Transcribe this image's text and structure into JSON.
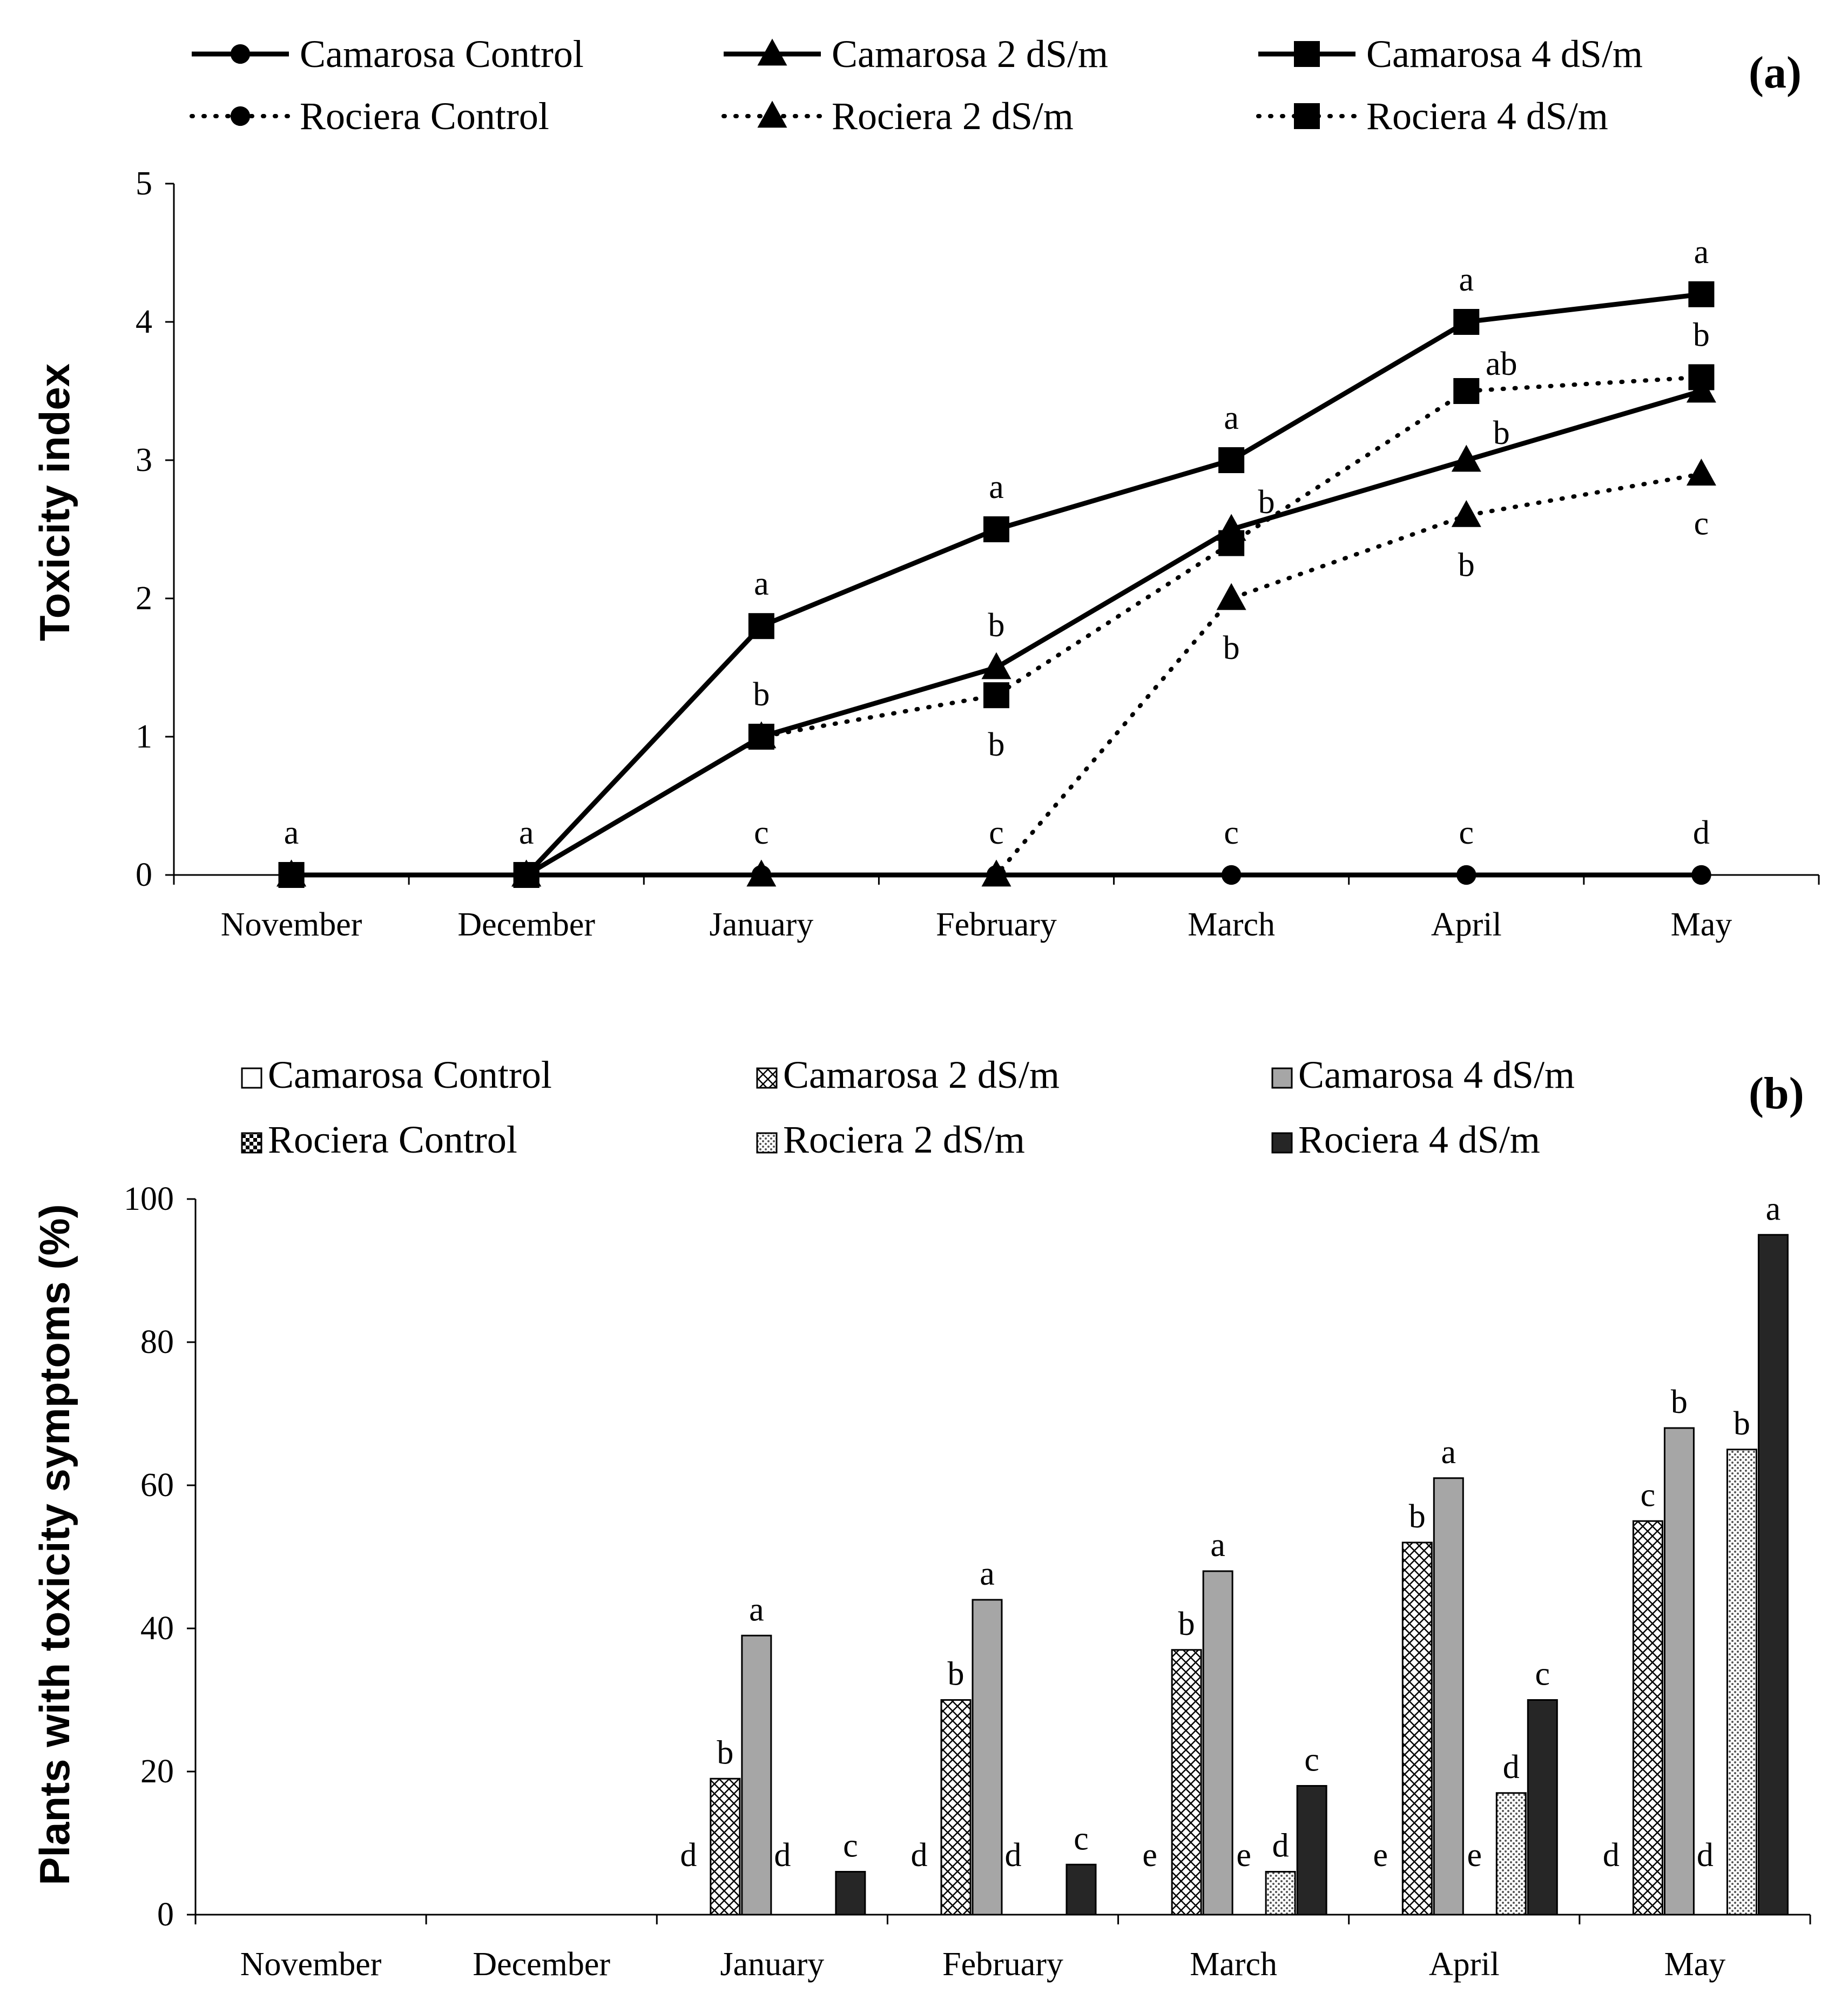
{
  "chart_data": [
    {
      "type": "line",
      "panel_label": "(a)",
      "ylabel": "Toxicity index",
      "ylim": [
        0,
        5
      ],
      "yticks": [
        0,
        1,
        2,
        3,
        4,
        5
      ],
      "categories": [
        "November",
        "December",
        "January",
        "February",
        "March",
        "April",
        "May"
      ],
      "legend": [
        "Camarosa Control",
        "Camarosa 2 dS/m",
        "Camarosa 4 dS/m",
        "Rociera Control",
        "Rociera 2 dS/m",
        "Rociera 4 dS/m"
      ],
      "series": [
        {
          "name": "Camarosa Control",
          "marker": "circle",
          "dash": "solid",
          "values": [
            0,
            0,
            0,
            0,
            0,
            0,
            0
          ]
        },
        {
          "name": "Camarosa 2 dS/m",
          "marker": "triangle",
          "dash": "solid",
          "values": [
            0,
            0,
            1.0,
            1.5,
            2.5,
            3.0,
            3.5
          ]
        },
        {
          "name": "Camarosa 4 dS/m",
          "marker": "square",
          "dash": "solid",
          "values": [
            0,
            0,
            1.8,
            2.5,
            3.0,
            4.0,
            4.2
          ]
        },
        {
          "name": "Rociera Control",
          "marker": "circle",
          "dash": "dotted",
          "values": [
            0,
            0,
            0,
            0,
            0,
            0,
            0
          ]
        },
        {
          "name": "Rociera 2 dS/m",
          "marker": "triangle",
          "dash": "dotted",
          "values": [
            0,
            0,
            0,
            0,
            2.0,
            2.6,
            2.9
          ]
        },
        {
          "name": "Rociera 4 dS/m",
          "marker": "square",
          "dash": "dotted",
          "values": [
            0,
            0,
            1.0,
            1.3,
            2.4,
            3.5,
            3.6
          ]
        }
      ],
      "annotations": [
        {
          "category": "November",
          "value": 0,
          "text": "a",
          "position": "above"
        },
        {
          "category": "December",
          "value": 0,
          "text": "a",
          "position": "above"
        },
        {
          "category": "January",
          "value": 1.8,
          "text": "a",
          "position": "above"
        },
        {
          "category": "January",
          "value": 1.0,
          "text": "b",
          "position": "above"
        },
        {
          "category": "January",
          "value": 0,
          "text": "c",
          "position": "above"
        },
        {
          "category": "February",
          "value": 2.5,
          "text": "a",
          "position": "above"
        },
        {
          "category": "February",
          "value": 1.5,
          "text": "b",
          "position": "above"
        },
        {
          "category": "February",
          "value": 1.3,
          "text": "b",
          "position": "below"
        },
        {
          "category": "February",
          "value": 0,
          "text": "c",
          "position": "above"
        },
        {
          "category": "March",
          "value": 3.0,
          "text": "a",
          "position": "above"
        },
        {
          "category": "March",
          "value": 2.5,
          "text": "b",
          "position": "above-right"
        },
        {
          "category": "March",
          "value": 2.0,
          "text": "b",
          "position": "below"
        },
        {
          "category": "March",
          "value": 0,
          "text": "c",
          "position": "above"
        },
        {
          "category": "April",
          "value": 4.0,
          "text": "a",
          "position": "above"
        },
        {
          "category": "April",
          "value": 3.5,
          "text": "ab",
          "position": "above-right"
        },
        {
          "category": "April",
          "value": 3.0,
          "text": "b",
          "position": "above-right"
        },
        {
          "category": "April",
          "value": 2.6,
          "text": "b",
          "position": "below"
        },
        {
          "category": "April",
          "value": 0,
          "text": "c",
          "position": "above"
        },
        {
          "category": "May",
          "value": 4.2,
          "text": "a",
          "position": "above"
        },
        {
          "category": "May",
          "value": 3.6,
          "text": "b",
          "position": "above"
        },
        {
          "category": "May",
          "value": 2.9,
          "text": "c",
          "position": "below"
        },
        {
          "category": "May",
          "value": 0,
          "text": "d",
          "position": "above"
        }
      ]
    },
    {
      "type": "bar",
      "panel_label": "(b)",
      "ylabel": "Plants with toxicity symptoms (%)",
      "ylim": [
        0,
        100
      ],
      "yticks": [
        0,
        20,
        40,
        60,
        80,
        100
      ],
      "categories": [
        "November",
        "December",
        "January",
        "February",
        "March",
        "April",
        "May"
      ],
      "legend": [
        "Camarosa Control",
        "Camarosa 2 dS/m",
        "Camarosa 4 dS/m",
        "Rociera Control",
        "Rociera 2 dS/m",
        "Rociera 4 dS/m"
      ],
      "series": [
        {
          "name": "Camarosa Control",
          "fill": "#ffffff",
          "pattern": "none",
          "values": [
            0,
            0,
            0,
            0,
            0,
            0,
            0
          ],
          "labels": [
            "",
            "",
            "d",
            "d",
            "e",
            "e",
            "d"
          ]
        },
        {
          "name": "Camarosa 2 dS/m",
          "fill": "#ffffff",
          "pattern": "crosshatch",
          "values": [
            0,
            0,
            19,
            30,
            37,
            52,
            55
          ],
          "labels": [
            "",
            "",
            "b",
            "b",
            "b",
            "b",
            "c"
          ]
        },
        {
          "name": "Camarosa 4 dS/m",
          "fill": "#a6a6a6",
          "pattern": "none",
          "values": [
            0,
            0,
            39,
            44,
            48,
            61,
            68
          ],
          "labels": [
            "",
            "",
            "a",
            "a",
            "a",
            "a",
            "b"
          ]
        },
        {
          "name": "Rociera Control",
          "fill": "#ffffff",
          "pattern": "checker",
          "values": [
            0,
            0,
            0,
            0,
            0,
            0,
            0
          ],
          "labels": [
            "",
            "",
            "d",
            "d",
            "e",
            "e",
            "d"
          ]
        },
        {
          "name": "Rociera 2 dS/m",
          "fill": "#ffffff",
          "pattern": "dots",
          "values": [
            0,
            0,
            0,
            0,
            6,
            17,
            65
          ],
          "labels": [
            "",
            "",
            "",
            "",
            "d",
            "d",
            "b"
          ]
        },
        {
          "name": "Rociera 4 dS/m",
          "fill": "#262626",
          "pattern": "none",
          "values": [
            0,
            0,
            6,
            7,
            18,
            30,
            95
          ],
          "labels": [
            "",
            "",
            "c",
            "c",
            "c",
            "c",
            "a"
          ]
        }
      ]
    }
  ]
}
